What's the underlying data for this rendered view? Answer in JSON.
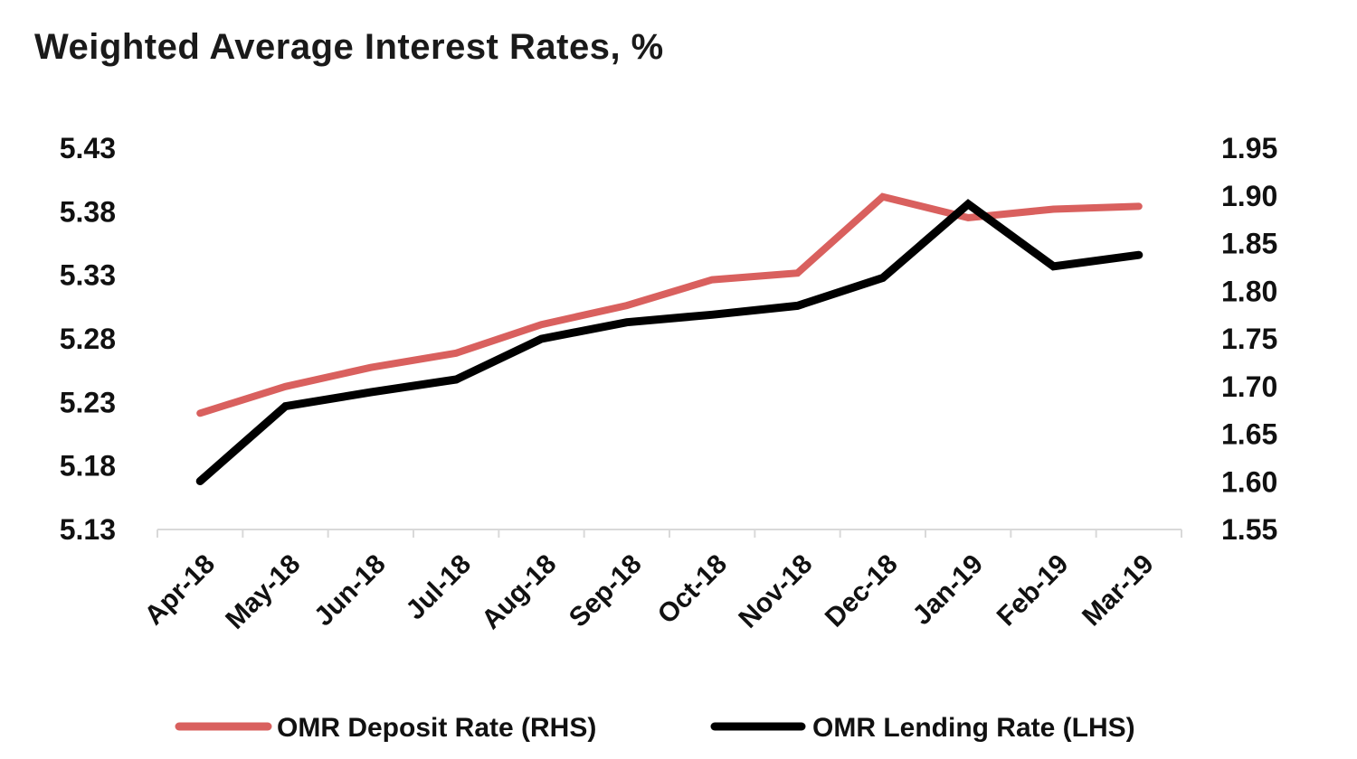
{
  "title": "Weighted Average Interest Rates, %",
  "chart_data": {
    "type": "line",
    "title": "Weighted Average Interest Rates, %",
    "categories": [
      "Apr-18",
      "May-18",
      "Jun-18",
      "Jul-18",
      "Aug-18",
      "Sep-18",
      "Oct-18",
      "Nov-18",
      "Dec-18",
      "Jan-19",
      "Feb-19",
      "Mar-19"
    ],
    "y_left": {
      "ticks": [
        "5.43",
        "5.38",
        "5.33",
        "5.28",
        "5.23",
        "5.18",
        "5.13"
      ],
      "range": [
        5.13,
        5.43
      ]
    },
    "y_right": {
      "ticks": [
        "1.95",
        "1.90",
        "1.85",
        "1.80",
        "1.75",
        "1.70",
        "1.65",
        "1.60",
        "1.55"
      ],
      "range": [
        1.55,
        1.95
      ]
    },
    "series": [
      {
        "name": "OMR Deposit Rate (RHS)",
        "axis": "right",
        "color": "#d9605e",
        "values": [
          1.672,
          1.7,
          1.72,
          1.735,
          1.765,
          1.785,
          1.812,
          1.819,
          1.899,
          1.877,
          1.886,
          1.889
        ]
      },
      {
        "name": "OMR Lending Rate (LHS)",
        "axis": "left",
        "color": "#000000",
        "values": [
          5.168,
          5.227,
          5.238,
          5.248,
          5.28,
          5.293,
          5.299,
          5.306,
          5.328,
          5.386,
          5.337,
          5.346
        ]
      }
    ],
    "grid": false,
    "legend_position": "bottom"
  }
}
